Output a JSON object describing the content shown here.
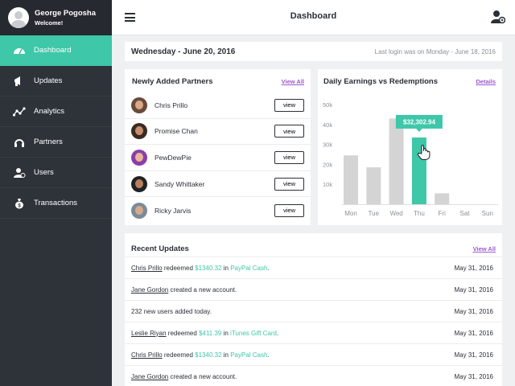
{
  "profile": {
    "name": "George Pogosha",
    "subtitle": "Welcome!"
  },
  "sidebar": {
    "items": [
      {
        "label": "Dashboard",
        "icon": "dashboard-gauge-icon",
        "active": true
      },
      {
        "label": "Updates",
        "icon": "megaphone-icon",
        "active": false
      },
      {
        "label": "Analytics",
        "icon": "analytics-graph-icon",
        "active": false
      },
      {
        "label": "Partners",
        "icon": "headset-icon",
        "active": false
      },
      {
        "label": "Users",
        "icon": "users-icon",
        "active": false
      },
      {
        "label": "Transactions",
        "icon": "money-bag-icon",
        "active": false
      }
    ]
  },
  "topbar": {
    "title": "Dashboard",
    "menu_icon": "hamburger-menu-icon",
    "user_icon": "user-settings-icon"
  },
  "datebar": {
    "date": "Wednesday - June 20, 2016",
    "last_login": "Last login was on Monday - June 18, 2016"
  },
  "partners": {
    "title": "Newly Added Partners",
    "view_all": "View All",
    "button_label": "view",
    "rows": [
      {
        "name": "Chris Prillo"
      },
      {
        "name": "Promise Chan"
      },
      {
        "name": "PewDewPie"
      },
      {
        "name": "Sandy Whittaker"
      },
      {
        "name": "Ricky Jarvis"
      }
    ]
  },
  "earnings": {
    "title": "Daily Earnings vs Redemptions",
    "details": "Details",
    "tooltip": "$32,302.94",
    "highlight_color": "#3ec7a9",
    "bar_color": "#d4d4d4"
  },
  "chart_data": {
    "type": "bar",
    "categories": [
      "Mon",
      "Tue",
      "Wed",
      "Thu",
      "Fri",
      "Sat",
      "Sun"
    ],
    "values": [
      24500,
      18500,
      43000,
      33500,
      5500,
      0,
      0
    ],
    "y_ticks": [
      "10k",
      "20k",
      "30k",
      "40k",
      "50k"
    ],
    "ylim": [
      0,
      50000
    ],
    "highlight_index": 3,
    "grid": false
  },
  "updates": {
    "title": "Recent Updates",
    "view_all": "View All",
    "rows": [
      {
        "user": "Chris Prillo",
        "text": " redeemed ",
        "amount": "$1340.32",
        "mid": " in ",
        "target": "PayPal Cash",
        "tail": ".",
        "date": "May 31, 2016"
      },
      {
        "user": "Jane Gordon",
        "text": " created a new account.",
        "amount": "",
        "mid": "",
        "target": "",
        "tail": "",
        "date": "May 31, 2016"
      },
      {
        "user": "",
        "text": "232 new users added today.",
        "amount": "",
        "mid": "",
        "target": "",
        "tail": "",
        "date": "May 31, 2016"
      },
      {
        "user": "Leslie Riyan",
        "text": " redeemed ",
        "amount": "$411.39",
        "mid": " in ",
        "target": "iTunes Gift Card",
        "tail": ".",
        "date": "May 31, 2016"
      },
      {
        "user": "Chris Prillo",
        "text": " redeemed ",
        "amount": "$1340.32",
        "mid": " in ",
        "target": "PayPal Cash",
        "tail": ".",
        "date": "May 31, 2016"
      },
      {
        "user": "Jane Gordon",
        "text": " created a new account.",
        "amount": "",
        "mid": "",
        "target": "",
        "tail": "",
        "date": "May 31, 2016"
      }
    ]
  }
}
